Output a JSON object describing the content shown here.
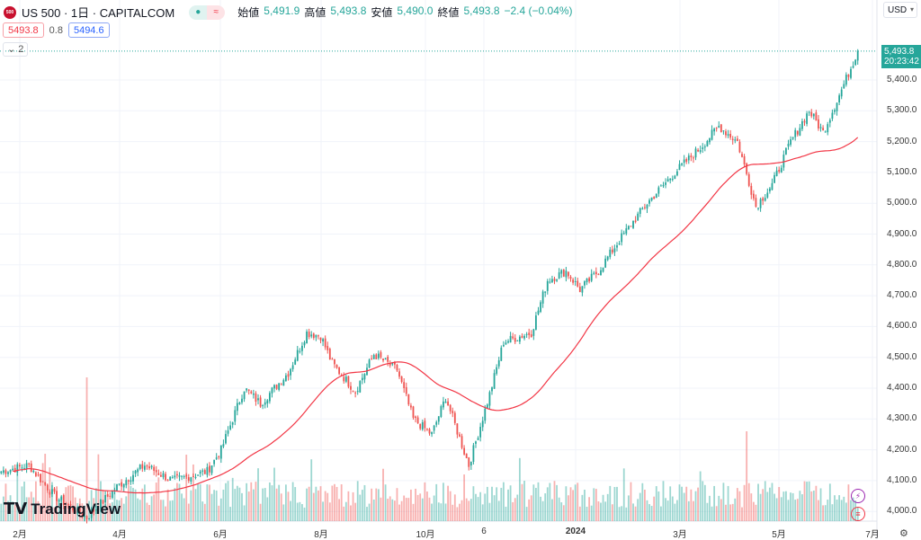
{
  "header": {
    "symbol": "US 500 · 1日 · CAPITALCOM",
    "logo": "500",
    "open_label": "始値",
    "open": "5,491.9",
    "high_label": "高値",
    "high": "5,493.8",
    "low_label": "安値",
    "low": "5,490.0",
    "close_label": "終値",
    "close": "5,493.8",
    "change": "−2.4 (−0.04%)"
  },
  "quote": {
    "bid": "5493.8",
    "spread": "0.8",
    "ask": "5494.6"
  },
  "indicators_collapse": "2",
  "currency": "USD",
  "price_tag": {
    "price": "5,493.8",
    "countdown": "20:23:42"
  },
  "y_axis": [
    "5,400.0",
    "5,300.0",
    "5,200.0",
    "5,100.0",
    "5,000.0",
    "4,900.0",
    "4,800.0",
    "4,700.0",
    "4,600.0",
    "4,500.0",
    "4,400.0",
    "4,300.0",
    "4,200.0",
    "4,100.0",
    "4,000.0"
  ],
  "x_axis": [
    "2月",
    "4月",
    "6月",
    "8月",
    "10月",
    "6",
    "2024",
    "3月",
    "5月",
    "7月"
  ],
  "brand": "TradingView",
  "colors": {
    "up": "#26a69a",
    "down": "#ef5350",
    "ma": "#f23645"
  },
  "chart_data": {
    "type": "candlestick",
    "ma_period": 50,
    "anchors": [
      [
        0,
        4130
      ],
      [
        12,
        4150
      ],
      [
        23,
        4050
      ],
      [
        37,
        3980
      ],
      [
        50,
        4080
      ],
      [
        62,
        4150
      ],
      [
        74,
        4100
      ],
      [
        89,
        4130
      ],
      [
        95,
        4200
      ],
      [
        105,
        4400
      ],
      [
        112,
        4350
      ],
      [
        124,
        4450
      ],
      [
        132,
        4580
      ],
      [
        138,
        4570
      ],
      [
        143,
        4480
      ],
      [
        153,
        4390
      ],
      [
        161,
        4510
      ],
      [
        171,
        4460
      ],
      [
        178,
        4300
      ],
      [
        186,
        4250
      ],
      [
        192,
        4370
      ],
      [
        202,
        4150
      ],
      [
        211,
        4380
      ],
      [
        217,
        4550
      ],
      [
        229,
        4580
      ],
      [
        236,
        4750
      ],
      [
        244,
        4780
      ],
      [
        250,
        4720
      ],
      [
        258,
        4780
      ],
      [
        267,
        4880
      ],
      [
        279,
        5000
      ],
      [
        291,
        5100
      ],
      [
        302,
        5180
      ],
      [
        310,
        5250
      ],
      [
        318,
        5200
      ],
      [
        326,
        4990
      ],
      [
        333,
        5060
      ],
      [
        341,
        5200
      ],
      [
        349,
        5300
      ],
      [
        355,
        5230
      ],
      [
        362,
        5350
      ],
      [
        370,
        5494
      ]
    ]
  }
}
